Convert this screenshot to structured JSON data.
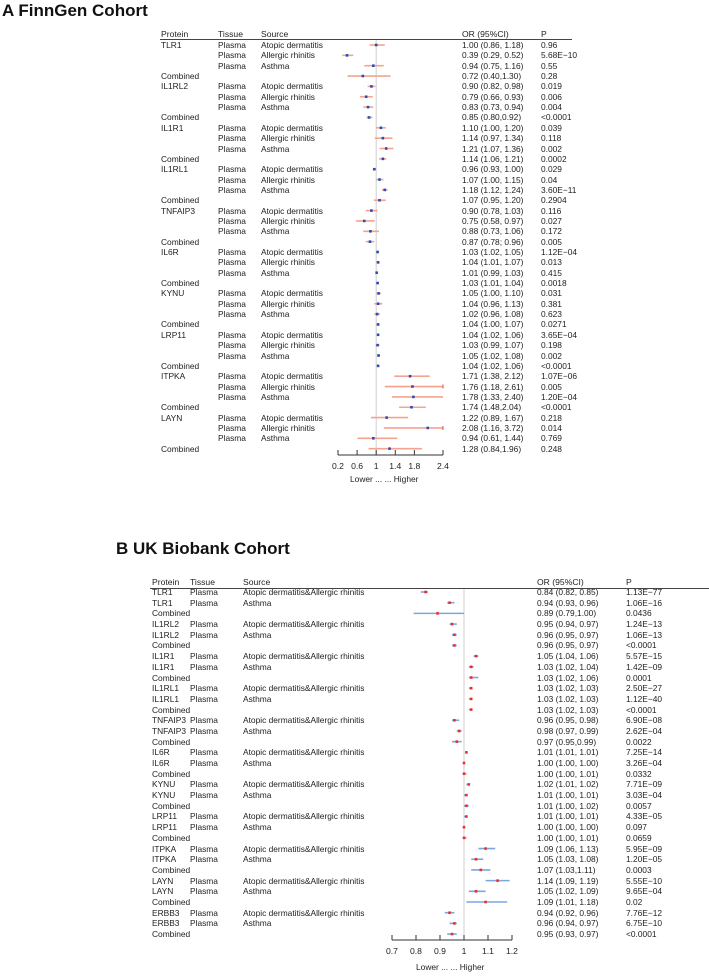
{
  "chart_data": [
    {
      "type": "forest",
      "title": "A FinnGen Cohort",
      "headers": {
        "protein": "Protein",
        "tissue": "Tissue",
        "source": "Source",
        "or": "OR (95%CI)",
        "p": "P"
      },
      "xlabel": "Lower ... ... Higher",
      "xlim": [
        0.2,
        2.4
      ],
      "xticks": [
        "0.2",
        "0.6",
        "1",
        "1.4",
        "1.8",
        "2.4"
      ],
      "reference_line": 1,
      "colors": {
        "ci": "#f5a38e",
        "ci_end": "#e84a3a",
        "point": "#2c4bb5",
        "ref": "#cfcfcf"
      },
      "rows": [
        {
          "protein": "TLR1",
          "tissue": "Plasma",
          "source": "Atopic dermatitis",
          "or": "1.00 (0.86, 1.18)",
          "p": "0.96"
        },
        {
          "protein": "",
          "tissue": "Plasma",
          "source": "Allergic rhinitis",
          "or": "0.39 (0.29, 0.52)",
          "p": "5.68E−10"
        },
        {
          "protein": "",
          "tissue": "Plasma",
          "source": "Asthma",
          "or": "0.94 (0.75, 1.16)",
          "p": "0.55"
        },
        {
          "protein": "Combined",
          "tissue": "",
          "source": "",
          "or": "0.72 (0.40,1.30)",
          "p": "0.28"
        },
        {
          "protein": "IL1RL2",
          "tissue": "Plasma",
          "source": "Atopic dermatitis",
          "or": "0.90 (0.82, 0.98)",
          "p": "0.019"
        },
        {
          "protein": "",
          "tissue": "Plasma",
          "source": "Allergic rhinitis",
          "or": "0.79 (0.66, 0.93)",
          "p": "0.006"
        },
        {
          "protein": "",
          "tissue": "Plasma",
          "source": "Asthma",
          "or": "0.83 (0.73, 0.94)",
          "p": "0.004"
        },
        {
          "protein": "Combined",
          "tissue": "",
          "source": "",
          "or": "0.85 (0.80,0.92)",
          "p": "<0.0001"
        },
        {
          "protein": "IL1R1",
          "tissue": "Plasma",
          "source": "Atopic dermatitis",
          "or": "1.10 (1.00, 1.20)",
          "p": "0.039"
        },
        {
          "protein": "",
          "tissue": "Plasma",
          "source": "Allergic rhinitis",
          "or": "1.14 (0.97, 1.34)",
          "p": "0.118"
        },
        {
          "protein": "",
          "tissue": "Plasma",
          "source": "Asthma",
          "or": "1.21 (1.07, 1.36)",
          "p": "0.002"
        },
        {
          "protein": "Combined",
          "tissue": "",
          "source": "",
          "or": "1.14 (1.06, 1.21)",
          "p": "0.0002"
        },
        {
          "protein": "IL1RL1",
          "tissue": "Plasma",
          "source": "Atopic dermatitis",
          "or": "0.96 (0.93, 1.00)",
          "p": "0.029"
        },
        {
          "protein": "",
          "tissue": "Plasma",
          "source": "Allergic rhinitis",
          "or": "1.07 (1.00, 1.15)",
          "p": "0.04"
        },
        {
          "protein": "",
          "tissue": "Plasma",
          "source": "Asthma",
          "or": "1.18 (1.12, 1.24)",
          "p": "3.60E−11"
        },
        {
          "protein": "Combined",
          "tissue": "",
          "source": "",
          "or": "1.07 (0.95, 1.20)",
          "p": "0.2904"
        },
        {
          "protein": "TNFAIP3",
          "tissue": "Plasma",
          "source": "Atopic dermatitis",
          "or": "0.90 (0.78, 1.03)",
          "p": "0.116"
        },
        {
          "protein": "",
          "tissue": "Plasma",
          "source": "Allergic rhinitis",
          "or": "0.75 (0.58, 0.97)",
          "p": "0.027"
        },
        {
          "protein": "",
          "tissue": "Plasma",
          "source": "Asthma",
          "or": "0.88 (0.73, 1.06)",
          "p": "0.172"
        },
        {
          "protein": "Combined",
          "tissue": "",
          "source": "",
          "or": "0.87 (0.78; 0.96)",
          "p": "0.005"
        },
        {
          "protein": "IL6R",
          "tissue": "Plasma",
          "source": "Atopic dermatitis",
          "or": "1.03 (1.02, 1.05)",
          "p": "1.12E−04"
        },
        {
          "protein": "",
          "tissue": "Plasma",
          "source": "Allergic rhinitis",
          "or": "1.04 (1.01, 1.07)",
          "p": "0.013"
        },
        {
          "protein": "",
          "tissue": "Plasma",
          "source": "Asthma",
          "or": "1.01 (0.99, 1.03)",
          "p": "0.415"
        },
        {
          "protein": "Combined",
          "tissue": "",
          "source": "",
          "or": "1.03 (1.01, 1.04)",
          "p": "0.0018"
        },
        {
          "protein": "KYNU",
          "tissue": "Plasma",
          "source": "Atopic dermatitis",
          "or": "1.05 (1.00, 1.10)",
          "p": "0.031"
        },
        {
          "protein": "",
          "tissue": "Plasma",
          "source": "Allergic rhinitis",
          "or": "1.04 (0.96, 1.13)",
          "p": "0.381"
        },
        {
          "protein": "",
          "tissue": "Plasma",
          "source": "Asthma",
          "or": "1.02 (0.96, 1.08)",
          "p": "0.623"
        },
        {
          "protein": "Combined",
          "tissue": "",
          "source": "",
          "or": "1.04 (1.00, 1.07)",
          "p": "0.0271"
        },
        {
          "protein": "LRP11",
          "tissue": "Plasma",
          "source": "Atopic dermatitis",
          "or": "1.04 (1.02, 1.06)",
          "p": "3.65E−04"
        },
        {
          "protein": "",
          "tissue": "Plasma",
          "source": "Allergic rhinitis",
          "or": "1.03 (0.99, 1.07)",
          "p": "0.198"
        },
        {
          "protein": "",
          "tissue": "Plasma",
          "source": "Asthma",
          "or": "1.05 (1.02, 1.08)",
          "p": "0.002"
        },
        {
          "protein": "Combined",
          "tissue": "",
          "source": "",
          "or": "1.04 (1.02, 1.06)",
          "p": "<0.0001"
        },
        {
          "protein": "ITPKA",
          "tissue": "Plasma",
          "source": "Atopic dermatitis",
          "or": "1.71 (1.38, 2.12)",
          "p": "1.07E−06"
        },
        {
          "protein": "",
          "tissue": "Plasma",
          "source": "Allergic rhinitis",
          "or": "1.76 (1.18, 2.61)",
          "p": "0.005"
        },
        {
          "protein": "",
          "tissue": "Plasma",
          "source": "Asthma",
          "or": "1.78 (1.33, 2.40)",
          "p": "1.20E−04"
        },
        {
          "protein": "Combined",
          "tissue": "",
          "source": "",
          "or": "1.74 (1.48,2.04)",
          "p": "<0.0001"
        },
        {
          "protein": "LAYN",
          "tissue": "Plasma",
          "source": "Atopic dermatitis",
          "or": "1.22 (0.89, 1.67)",
          "p": "0.218"
        },
        {
          "protein": "",
          "tissue": "Plasma",
          "source": "Allergic rhinitis",
          "or": "2.08 (1.16, 3.72)",
          "p": "0.014"
        },
        {
          "protein": "",
          "tissue": "Plasma",
          "source": "Asthma",
          "or": "0.94 (0.61, 1.44)",
          "p": "0.769"
        },
        {
          "protein": "Combined",
          "tissue": "",
          "source": "",
          "or": "1.28 (0.84,1.96)",
          "p": "0.248"
        }
      ]
    },
    {
      "type": "forest",
      "title": "B UK Biobank Cohort",
      "headers": {
        "protein": "Protein",
        "tissue": "Tissue",
        "source": "Source",
        "or": "OR (95%CI)",
        "p": "P"
      },
      "xlabel": "Lower ... ... Higher",
      "xlim": [
        0.7,
        1.2
      ],
      "xticks": [
        "0.7",
        "0.8",
        "0.9",
        "1",
        "1.1",
        "1.2"
      ],
      "reference_line": 1,
      "colors": {
        "ci": "#7ea5e2",
        "ci_end": "#7ea5e2",
        "point": "#e8302a",
        "ref": "#cfcfcf"
      },
      "rows": [
        {
          "protein": "TLR1",
          "tissue": "Plasma",
          "source": "Atopic dermatitis&Allergic rhinitis",
          "or": "0.84 (0.82, 0.85)",
          "p": "1.13E−77"
        },
        {
          "protein": "TLR1",
          "tissue": "Plasma",
          "source": "Asthma",
          "or": "0.94 (0.93, 0.96)",
          "p": "1.06E−16"
        },
        {
          "protein": "Combined",
          "tissue": "",
          "source": "",
          "or": "0.89 (0.79,1.00)",
          "p": "0.0436"
        },
        {
          "protein": "IL1RL2",
          "tissue": "Plasma",
          "source": "Atopic dermatitis&Allergic rhinitis",
          "or": "0.95 (0.94, 0.97)",
          "p": "1.24E−13"
        },
        {
          "protein": "IL1RL2",
          "tissue": "Plasma",
          "source": "Asthma",
          "or": "0.96 (0.95, 0.97)",
          "p": "1.06E−13"
        },
        {
          "protein": "Combined",
          "tissue": "",
          "source": "",
          "or": "0.96 (0.95, 0.97)",
          "p": "<0.0001"
        },
        {
          "protein": "IL1R1",
          "tissue": "Plasma",
          "source": "Atopic dermatitis&Allergic rhinitis",
          "or": "1.05 (1.04, 1.06)",
          "p": "5.57E−15"
        },
        {
          "protein": "IL1R1",
          "tissue": "Plasma",
          "source": "Asthma",
          "or": "1.03 (1.02, 1.04)",
          "p": "1.42E−09"
        },
        {
          "protein": "Combined",
          "tissue": "",
          "source": "",
          "or": "1.03 (1.02, 1.06)",
          "p": "0.0001"
        },
        {
          "protein": "IL1RL1",
          "tissue": "Plasma",
          "source": "Atopic dermatitis&Allergic rhinitis",
          "or": "1.03 (1.02, 1.03)",
          "p": "2.50E−27"
        },
        {
          "protein": "IL1RL1",
          "tissue": "Plasma",
          "source": "Asthma",
          "or": "1.03 (1.02, 1.03)",
          "p": "1.12E−40"
        },
        {
          "protein": "Combined",
          "tissue": "",
          "source": "",
          "or": "1.03 (1.02, 1.03)",
          "p": "<0.0001"
        },
        {
          "protein": "TNFAIP3",
          "tissue": "Plasma",
          "source": "Atopic dermatitis&Allergic rhinitis",
          "or": "0.96 (0.95, 0.98)",
          "p": "6.90E−08"
        },
        {
          "protein": "TNFAIP3",
          "tissue": "Plasma",
          "source": "Asthma",
          "or": "0.98 (0.97, 0.99)",
          "p": "2.62E−04"
        },
        {
          "protein": "Combined",
          "tissue": "",
          "source": "",
          "or": "0.97 (0.95,0.99)",
          "p": "0.0022"
        },
        {
          "protein": "IL6R",
          "tissue": "Plasma",
          "source": "Atopic dermatitis&Allergic rhinitis",
          "or": "1.01 (1.01, 1.01)",
          "p": "7.25E−14"
        },
        {
          "protein": "IL6R",
          "tissue": "Plasma",
          "source": "Asthma",
          "or": "1.00 (1.00, 1.00)",
          "p": "3.26E−04"
        },
        {
          "protein": "Combined",
          "tissue": "",
          "source": "",
          "or": "1.00 (1.00, 1.01)",
          "p": "0.0332"
        },
        {
          "protein": "KYNU",
          "tissue": "Plasma",
          "source": "Atopic dermatitis&Allergic rhinitis",
          "or": "1.02 (1.01, 1.02)",
          "p": "7.71E−09"
        },
        {
          "protein": "KYNU",
          "tissue": "Plasma",
          "source": "Asthma",
          "or": "1.01 (1.00, 1.01)",
          "p": "3.03E−04"
        },
        {
          "protein": "Combined",
          "tissue": "",
          "source": "",
          "or": "1.01 (1.00, 1.02)",
          "p": "0.0057"
        },
        {
          "protein": "LRP11",
          "tissue": "Plasma",
          "source": "Atopic dermatitis&Allergic rhinitis",
          "or": "1.01 (1.00, 1.01)",
          "p": "4.33E−05"
        },
        {
          "protein": "LRP11",
          "tissue": "Plasma",
          "source": "Asthma",
          "or": "1.00 (1.00, 1.00)",
          "p": "0.097"
        },
        {
          "protein": "Combined",
          "tissue": "",
          "source": "",
          "or": "1.00 (1.00, 1.01)",
          "p": "0.0659"
        },
        {
          "protein": "ITPKA",
          "tissue": "Plasma",
          "source": "Atopic dermatitis&Allergic rhinitis",
          "or": "1.09 (1.06, 1.13)",
          "p": "5.95E−09"
        },
        {
          "protein": "ITPKA",
          "tissue": "Plasma",
          "source": "Asthma",
          "or": "1.05 (1.03, 1.08)",
          "p": "1.20E−05"
        },
        {
          "protein": "Combined",
          "tissue": "",
          "source": "",
          "or": "1.07 (1.03,1.11)",
          "p": "0.0003"
        },
        {
          "protein": "LAYN",
          "tissue": "Plasma",
          "source": "Atopic dermatitis&Allergic rhinitis",
          "or": "1.14 (1.09, 1.19)",
          "p": "5.55E−10"
        },
        {
          "protein": "LAYN",
          "tissue": "Plasma",
          "source": "Asthma",
          "or": "1.05 (1.02, 1.09)",
          "p": "9.65E−04"
        },
        {
          "protein": "Combined",
          "tissue": "",
          "source": "",
          "or": "1.09 (1.01, 1.18)",
          "p": "0.02"
        },
        {
          "protein": "ERBB3",
          "tissue": "Plasma",
          "source": "Atopic dermatitis&Allergic rhinitis",
          "or": "0.94 (0.92, 0.96)",
          "p": "7.76E−12"
        },
        {
          "protein": "ERBB3",
          "tissue": "Plasma",
          "source": "Asthma",
          "or": "0.96 (0.94, 0.97)",
          "p": "6.75E−10"
        },
        {
          "protein": "Combined",
          "tissue": "",
          "source": "",
          "or": "0.95 (0.93, 0.97)",
          "p": "<0.0001"
        }
      ]
    }
  ]
}
